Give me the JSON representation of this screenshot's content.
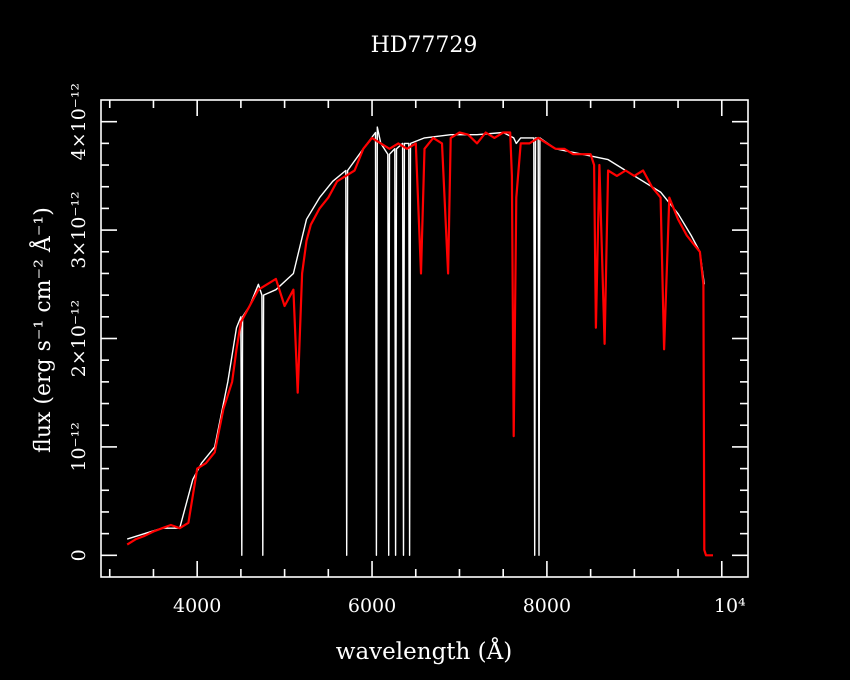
{
  "chart_data": {
    "type": "line",
    "title": "HD77729",
    "xlabel": "wavelength (Å)",
    "ylabel": "flux (erg s⁻¹ cm⁻² Å⁻¹)",
    "xlim": [
      2900,
      10300
    ],
    "ylim": [
      -2e-13,
      4.2e-12
    ],
    "x_ticks": [
      {
        "value": 4000,
        "label": "4000"
      },
      {
        "value": 6000,
        "label": "6000"
      },
      {
        "value": 8000,
        "label": "8000"
      },
      {
        "value": 10000,
        "label": "10⁴"
      }
    ],
    "y_ticks": [
      {
        "value": 0,
        "label": "0"
      },
      {
        "value": 1e-12,
        "label": "10⁻¹²"
      },
      {
        "value": 2e-12,
        "label": "2×10⁻¹²"
      },
      {
        "value": 3e-12,
        "label": "3×10⁻¹²"
      },
      {
        "value": 4e-12,
        "label": "4×10⁻¹²"
      }
    ],
    "grid": false,
    "series": [
      {
        "color": "#ffffff",
        "x": [
          3200,
          3400,
          3600,
          3800,
          3950,
          4050,
          4200,
          4350,
          4450,
          4500,
          4510,
          4520,
          4600,
          4700,
          4740,
          4750,
          4760,
          4900,
          5100,
          5250,
          5400,
          5550,
          5700,
          5710,
          5720,
          5900,
          6040,
          6050,
          6060,
          6100,
          6180,
          6190,
          6200,
          6260,
          6270,
          6280,
          6350,
          6360,
          6370,
          6420,
          6430,
          6440,
          6600,
          6900,
          7200,
          7500,
          7620,
          7650,
          7700,
          7850,
          7860,
          7870,
          7900,
          7910,
          7920,
          8100,
          8400,
          8700,
          9000,
          9300,
          9500,
          9650,
          9750,
          9800
        ],
        "y": [
          1.5e-13,
          2e-13,
          2.5e-13,
          2.5e-13,
          7e-13,
          8.5e-13,
          1e-12,
          1.6e-12,
          2.1e-12,
          2.2e-12,
          0,
          2.2e-12,
          2.3e-12,
          2.5e-12,
          2.4e-12,
          0,
          2.4e-12,
          2.45e-12,
          2.6e-12,
          3.1e-12,
          3.3e-12,
          3.45e-12,
          3.55e-12,
          0,
          3.55e-12,
          3.75e-12,
          3.9e-12,
          0,
          3.95e-12,
          3.8e-12,
          3.7e-12,
          0,
          3.7e-12,
          3.75e-12,
          0,
          3.75e-12,
          3.8e-12,
          0,
          3.8e-12,
          3.8e-12,
          0,
          3.8e-12,
          3.85e-12,
          3.88e-12,
          3.88e-12,
          3.9e-12,
          3.85e-12,
          3.8e-12,
          3.85e-12,
          3.85e-12,
          0,
          3.85e-12,
          3.85e-12,
          0,
          3.85e-12,
          3.75e-12,
          3.7e-12,
          3.65e-12,
          3.5e-12,
          3.35e-12,
          3.15e-12,
          2.95e-12,
          2.8e-12,
          2.5e-12
        ]
      },
      {
        "color": "#ff0000",
        "x": [
          3200,
          3300,
          3400,
          3500,
          3600,
          3700,
          3800,
          3900,
          3950,
          4000,
          4100,
          4200,
          4300,
          4400,
          4450,
          4500,
          4600,
          4700,
          4800,
          4900,
          5000,
          5100,
          5150,
          5200,
          5250,
          5300,
          5400,
          5500,
          5600,
          5700,
          5800,
          5900,
          6000,
          6100,
          6200,
          6300,
          6400,
          6500,
          6560,
          6600,
          6700,
          6800,
          6870,
          6900,
          7000,
          7100,
          7200,
          7300,
          7400,
          7500,
          7580,
          7600,
          7620,
          7650,
          7700,
          7800,
          7900,
          8000,
          8100,
          8200,
          8300,
          8400,
          8500,
          8540,
          8560,
          8600,
          8660,
          8700,
          8800,
          8900,
          9000,
          9100,
          9200,
          9300,
          9340,
          9400,
          9500,
          9600,
          9700,
          9750,
          9790,
          9800,
          9820,
          9900
        ],
        "y": [
          1e-13,
          1.5e-13,
          1.8e-13,
          2.2e-13,
          2.5e-13,
          2.8e-13,
          2.5e-13,
          3e-13,
          5.5e-13,
          8e-13,
          8.5e-13,
          9.5e-13,
          1.35e-12,
          1.6e-12,
          1.9e-12,
          2.15e-12,
          2.3e-12,
          2.45e-12,
          2.5e-12,
          2.55e-12,
          2.3e-12,
          2.45e-12,
          1.5e-12,
          2.6e-12,
          2.9e-12,
          3.05e-12,
          3.2e-12,
          3.3e-12,
          3.45e-12,
          3.5e-12,
          3.55e-12,
          3.75e-12,
          3.85e-12,
          3.8e-12,
          3.75e-12,
          3.8e-12,
          3.75e-12,
          3.8e-12,
          2.6e-12,
          3.75e-12,
          3.85e-12,
          3.8e-12,
          2.6e-12,
          3.85e-12,
          3.9e-12,
          3.88e-12,
          3.8e-12,
          3.9e-12,
          3.85e-12,
          3.9e-12,
          3.9e-12,
          3.5e-12,
          1.1e-12,
          3.3e-12,
          3.8e-12,
          3.8e-12,
          3.85e-12,
          3.8e-12,
          3.75e-12,
          3.75e-12,
          3.7e-12,
          3.7e-12,
          3.7e-12,
          3.6e-12,
          2.1e-12,
          3.6e-12,
          1.95e-12,
          3.55e-12,
          3.5e-12,
          3.55e-12,
          3.5e-12,
          3.55e-12,
          3.4e-12,
          3.3e-12,
          1.9e-12,
          3.3e-12,
          3.1e-12,
          2.95e-12,
          2.85e-12,
          2.8e-12,
          2.5e-12,
          5e-14,
          0,
          0
        ]
      }
    ]
  }
}
